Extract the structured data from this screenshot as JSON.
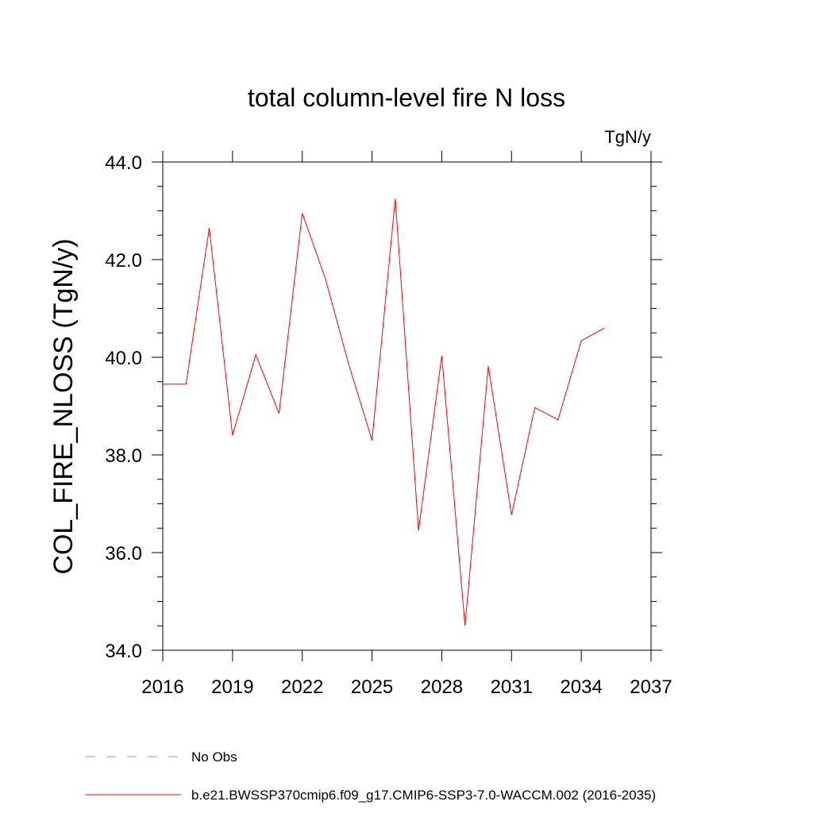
{
  "chart_data": {
    "type": "line",
    "title": "total column-level fire N loss",
    "units": "TgN/y",
    "ylabel": "COL_FIRE_NLOSS  (TgN/y)",
    "xlabel": "",
    "xlim": [
      2016,
      2037
    ],
    "ylim": [
      34.0,
      44.0
    ],
    "xticks": [
      2016,
      2019,
      2022,
      2025,
      2028,
      2031,
      2034,
      2037
    ],
    "yticks": [
      "34.0",
      "36.0",
      "38.0",
      "40.0",
      "42.0",
      "44.0"
    ],
    "grid": false,
    "series": [
      {
        "name": "b.e21.BWSSP370cmip6.f09_g17.CMIP6-SSP3-7.0-WACCM.002 (2016-2035)",
        "color": "#ff0000",
        "style": "solid",
        "x": [
          2016,
          2017,
          2018,
          2019,
          2020,
          2021,
          2022,
          2023,
          2024,
          2025,
          2026,
          2027,
          2028,
          2029,
          2030,
          2031,
          2032,
          2033,
          2034,
          2035
        ],
        "y": [
          39.45,
          39.45,
          42.65,
          38.4,
          40.05,
          38.85,
          42.95,
          41.6,
          39.85,
          38.3,
          43.25,
          36.45,
          40.03,
          34.5,
          39.82,
          36.77,
          38.97,
          38.72,
          40.34,
          40.6
        ]
      }
    ],
    "legend": [
      {
        "label": "No Obs",
        "color": "#9a8fcf",
        "style": "dashed"
      },
      {
        "label": "b.e21.BWSSP370cmip6.f09_g17.CMIP6-SSP3-7.0-WACCM.002 (2016-2035)",
        "color": "#ff0000",
        "style": "solid"
      }
    ],
    "legend_position": "bottom-left"
  }
}
